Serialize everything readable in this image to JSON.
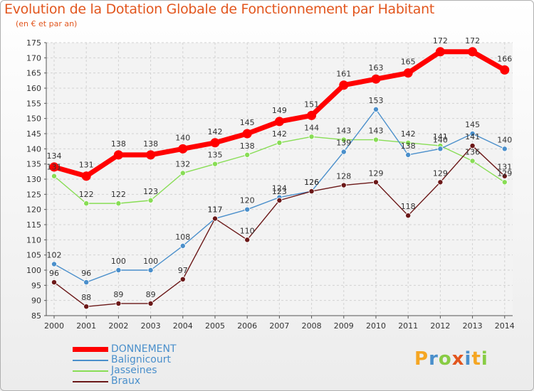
{
  "title": "Evolution de la Dotation Globale de Fonctionnement par Habitant",
  "subtitle": "(en € et par an)",
  "logo": {
    "chars": [
      "P",
      "r",
      "o",
      "x",
      "i",
      "t",
      "i"
    ]
  },
  "colors": {
    "title": "#e2561e",
    "DONNEMENT": "#ff0000",
    "Balignicourt": "#4a8fcb",
    "Jasseines": "#88dd55",
    "Braux": "#6b1818"
  },
  "chart_data": {
    "type": "line",
    "title": "Evolution de la Dotation Globale de Fonctionnement par Habitant",
    "subtitle": "(en € et par an)",
    "x": [
      "2000",
      "2001",
      "2002",
      "2003",
      "2004",
      "2005",
      "2006",
      "2007",
      "2008",
      "2009",
      "2010",
      "2011",
      "2012",
      "2013",
      "2014"
    ],
    "ylim": [
      85,
      175
    ],
    "yticks": [
      85,
      90,
      95,
      100,
      105,
      110,
      115,
      120,
      125,
      130,
      135,
      140,
      145,
      150,
      155,
      160,
      165,
      170,
      175
    ],
    "grid": true,
    "legend_position": "bottom-left",
    "series": [
      {
        "name": "DONNEMENT",
        "values": [
          134,
          131,
          138,
          138,
          140,
          142,
          145,
          149,
          151,
          161,
          163,
          165,
          172,
          172,
          166
        ]
      },
      {
        "name": "Balignicourt",
        "values": [
          102,
          96,
          100,
          100,
          108,
          117,
          120,
          124,
          126,
          139,
          153,
          138,
          140,
          145,
          140
        ]
      },
      {
        "name": "Jasseines",
        "values": [
          131,
          122,
          122,
          123,
          132,
          135,
          138,
          142,
          144,
          143,
          143,
          142,
          141,
          136,
          129
        ]
      },
      {
        "name": "Braux",
        "values": [
          96,
          88,
          89,
          89,
          97,
          117,
          110,
          123,
          126,
          128,
          129,
          118,
          129,
          141,
          131
        ]
      }
    ]
  }
}
